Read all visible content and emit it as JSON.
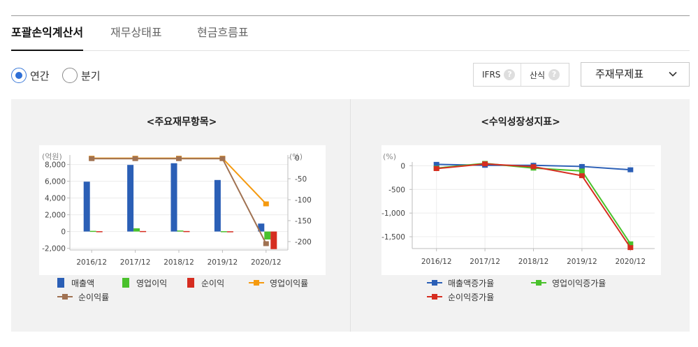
{
  "tabs": [
    {
      "label": "포괄손익계산서",
      "active": true
    },
    {
      "label": "재무상태표",
      "active": false
    },
    {
      "label": "현금흐름표",
      "active": false
    }
  ],
  "period": {
    "options": [
      {
        "label": "연간",
        "selected": true
      },
      {
        "label": "분기",
        "selected": false
      }
    ]
  },
  "options": {
    "ifrs_label": "IFRS",
    "formula_label": "산식",
    "help_glyph": "?"
  },
  "statement_select": {
    "value": "주재무제표",
    "icon": "chevron-down-icon"
  },
  "colors": {
    "blue": "#2b5fb6",
    "green": "#4ac12c",
    "red": "#d62d20",
    "orange": "#f59a0f",
    "brown": "#a07252"
  },
  "chart_data": [
    {
      "type": "bar",
      "title": "<주요재무항목>",
      "ylabel_left": "(억원)",
      "ylabel_right": "(%)",
      "categories": [
        "2016/12",
        "2017/12",
        "2018/12",
        "2019/12",
        "2020/12"
      ],
      "y_left_ticks": [
        "8,000",
        "6,000",
        "4,000",
        "2,000",
        "0",
        "-2,000"
      ],
      "y_left_tick_values": [
        8000,
        6000,
        4000,
        2000,
        0,
        -2000
      ],
      "y_right_ticks": [
        "0",
        "-50",
        "-100",
        "-150",
        "-200"
      ],
      "y_right_tick_values": [
        0,
        -50,
        -100,
        -150,
        -200
      ],
      "ylim_left": [
        -2200,
        8800
      ],
      "ylim_right": [
        -220,
        0
      ],
      "grid": true,
      "legend_position": "bottom",
      "series": [
        {
          "name": "매출액",
          "kind": "bar",
          "axis": "left",
          "color": "#2b5fb6",
          "values": [
            5950,
            7950,
            8150,
            6150,
            950
          ]
        },
        {
          "name": "영업이익",
          "kind": "bar",
          "axis": "left",
          "color": "#4ac12c",
          "values": [
            80,
            380,
            120,
            40,
            -950
          ]
        },
        {
          "name": "순이익",
          "kind": "bar",
          "axis": "left",
          "color": "#d62d20",
          "values": [
            40,
            60,
            60,
            30,
            -2100
          ]
        },
        {
          "name": "영업이익률",
          "kind": "line",
          "axis": "right",
          "color": "#f59a0f",
          "values": [
            -1,
            -1,
            -1,
            -1,
            -110
          ]
        },
        {
          "name": "순이익률",
          "kind": "line",
          "axis": "right",
          "color": "#a07252",
          "values": [
            -2,
            -2,
            -2,
            -2,
            -205
          ]
        }
      ]
    },
    {
      "type": "line",
      "title": "<수익성장성지표>",
      "ylabel_left": "(%)",
      "categories": [
        "2016/12",
        "2017/12",
        "2018/12",
        "2019/12",
        "2020/12"
      ],
      "y_ticks": [
        "0",
        "-500",
        "-1,000",
        "-1,500"
      ],
      "y_tick_values": [
        0,
        -500,
        -1000,
        -1500
      ],
      "ylim": [
        -1750,
        80
      ],
      "grid": true,
      "legend_position": "bottom",
      "series": [
        {
          "name": "매출액증가율",
          "color": "#2b5fb6",
          "values": [
            30,
            10,
            10,
            -15,
            -85
          ]
        },
        {
          "name": "영업이익증가율",
          "color": "#4ac12c",
          "values": [
            -50,
            50,
            -50,
            -110,
            -1650
          ]
        },
        {
          "name": "순이익증가율",
          "color": "#d62d20",
          "values": [
            -60,
            40,
            -20,
            -210,
            -1730
          ]
        }
      ]
    }
  ]
}
